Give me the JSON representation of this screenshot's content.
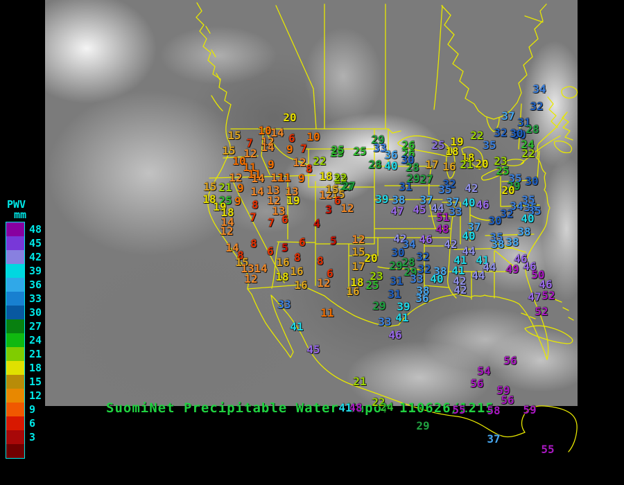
{
  "colorbar": {
    "title": "PWV",
    "units": "mm",
    "label_color": "#00e8e8",
    "entries": [
      {
        "value": 48,
        "color": "#8800a0"
      },
      {
        "value": 45,
        "color": "#7838d8"
      },
      {
        "value": 42,
        "color": "#8880e0"
      },
      {
        "value": 39,
        "color": "#00d8e0"
      },
      {
        "value": 36,
        "color": "#30a8e8"
      },
      {
        "value": 33,
        "color": "#1880d0"
      },
      {
        "value": 30,
        "color": "#0858a0"
      },
      {
        "value": 27,
        "color": "#088010"
      },
      {
        "value": 24,
        "color": "#10b810"
      },
      {
        "value": 21,
        "color": "#80cc00"
      },
      {
        "value": 18,
        "color": "#e0e000"
      },
      {
        "value": 15,
        "color": "#b88c08"
      },
      {
        "value": 12,
        "color": "#e88800"
      },
      {
        "value": 9,
        "color": "#f05800"
      },
      {
        "value": 6,
        "color": "#d81800"
      },
      {
        "value": 3,
        "color": "#a80808"
      }
    ],
    "below_min_color": "#700000"
  },
  "caption": {
    "text": "SuomiNet Precipitable Water Vapor",
    "datetime": "110626/1215",
    "color": "#20d040"
  },
  "map": {
    "border_color": "#e8e800",
    "background_color": "#000000"
  },
  "value_colors": {
    "3": "#d01000",
    "6": "#e83000",
    "9": "#f47000",
    "12": "#f08828",
    "15": "#dfa520",
    "18": "#e8e000",
    "21": "#9cd400",
    "24": "#30c030",
    "27": "#20a040",
    "30": "#2060c0",
    "33": "#3c82e0",
    "36": "#48a8f0",
    "39": "#20d8e8",
    "42": "#9090e8",
    "45": "#9868e8",
    "48": "#a818c0"
  },
  "chart_data": {
    "type": "scatter",
    "title": "SuomiNet Precipitable Water Vapor 110626/1215",
    "units": "mm",
    "legend_range": [
      3,
      48
    ]
  },
  "stations": [
    [
      20,
      418,
      170
    ],
    [
      15,
      338,
      196
    ],
    [
      10,
      382,
      189
    ],
    [
      14,
      400,
      192
    ],
    [
      6,
      421,
      200
    ],
    [
      10,
      452,
      198
    ],
    [
      7,
      360,
      207
    ],
    [
      12,
      386,
      205
    ],
    [
      14,
      386,
      213
    ],
    [
      9,
      418,
      216
    ],
    [
      7,
      438,
      215
    ],
    [
      15,
      330,
      218
    ],
    [
      12,
      361,
      222
    ],
    [
      10,
      345,
      233
    ],
    [
      25,
      486,
      221
    ],
    [
      22,
      461,
      233
    ],
    [
      11,
      360,
      242
    ],
    [
      9,
      391,
      238
    ],
    [
      12,
      432,
      235
    ],
    [
      8,
      446,
      244
    ],
    [
      12,
      340,
      257
    ],
    [
      11,
      367,
      252
    ],
    [
      14,
      372,
      258
    ],
    [
      12,
      400,
      257
    ],
    [
      11,
      410,
      257
    ],
    [
      9,
      435,
      258
    ],
    [
      18,
      470,
      255
    ],
    [
      22,
      492,
      260
    ],
    [
      27,
      500,
      270
    ],
    [
      15,
      303,
      270
    ],
    [
      21,
      325,
      271
    ],
    [
      9,
      347,
      272
    ],
    [
      14,
      371,
      277
    ],
    [
      13,
      394,
      275
    ],
    [
      13,
      421,
      277
    ],
    [
      18,
      302,
      288
    ],
    [
      25,
      325,
      290
    ],
    [
      9,
      343,
      291
    ],
    [
      12,
      395,
      290
    ],
    [
      19,
      423,
      290
    ],
    [
      12,
      470,
      282
    ],
    [
      15,
      488,
      281
    ],
    [
      6,
      487,
      290
    ],
    [
      8,
      368,
      296
    ],
    [
      19,
      317,
      299
    ],
    [
      18,
      328,
      307
    ],
    [
      14,
      328,
      321
    ],
    [
      12,
      327,
      334
    ],
    [
      7,
      365,
      314
    ],
    [
      13,
      402,
      305
    ],
    [
      7,
      391,
      322
    ],
    [
      6,
      411,
      317
    ],
    [
      4,
      457,
      323
    ],
    [
      8,
      366,
      352
    ],
    [
      14,
      335,
      358
    ],
    [
      8,
      347,
      369
    ],
    [
      6,
      390,
      363
    ],
    [
      5,
      411,
      358
    ],
    [
      6,
      436,
      350
    ],
    [
      8,
      429,
      372
    ],
    [
      8,
      462,
      377
    ],
    [
      15,
      349,
      379
    ],
    [
      13,
      357,
      388
    ],
    [
      14,
      376,
      388
    ],
    [
      12,
      362,
      403
    ],
    [
      16,
      408,
      379
    ],
    [
      16,
      428,
      392
    ],
    [
      18,
      407,
      400
    ],
    [
      16,
      434,
      412
    ],
    [
      5,
      481,
      348
    ],
    [
      12,
      517,
      346
    ],
    [
      15,
      517,
      364
    ],
    [
      20,
      535,
      373
    ],
    [
      17,
      517,
      385
    ],
    [
      6,
      476,
      395
    ],
    [
      12,
      467,
      409
    ],
    [
      18,
      515,
      408
    ],
    [
      16,
      509,
      421
    ],
    [
      23,
      543,
      399
    ],
    [
      25,
      537,
      412
    ],
    [
      42,
      577,
      345
    ],
    [
      34,
      590,
      353
    ],
    [
      46,
      614,
      346
    ],
    [
      30,
      574,
      365
    ],
    [
      29,
      571,
      384
    ],
    [
      28,
      589,
      379
    ],
    [
      32,
      610,
      371
    ],
    [
      29,
      592,
      393
    ],
    [
      32,
      612,
      389
    ],
    [
      33,
      601,
      403
    ],
    [
      38,
      635,
      392
    ],
    [
      40,
      630,
      403
    ],
    [
      31,
      572,
      406
    ],
    [
      31,
      569,
      425
    ],
    [
      38,
      610,
      420
    ],
    [
      36,
      609,
      431
    ],
    [
      29,
      547,
      442
    ],
    [
      39,
      582,
      443
    ],
    [
      41,
      580,
      459
    ],
    [
      33,
      555,
      465
    ],
    [
      46,
      570,
      484
    ],
    [
      11,
      472,
      452
    ],
    [
      45,
      452,
      505
    ],
    [
      33,
      410,
      440
    ],
    [
      41,
      428,
      472
    ],
    [
      29,
      545,
      202
    ],
    [
      33,
      548,
      214
    ],
    [
      25,
      487,
      217
    ],
    [
      25,
      519,
      219
    ],
    [
      26,
      589,
      210
    ],
    [
      26,
      589,
      222
    ],
    [
      36,
      564,
      224
    ],
    [
      30,
      588,
      231
    ],
    [
      28,
      541,
      238
    ],
    [
      40,
      564,
      240
    ],
    [
      28,
      595,
      242
    ],
    [
      29,
      596,
      258
    ],
    [
      27,
      615,
      259
    ],
    [
      22,
      491,
      257
    ],
    [
      27,
      503,
      269
    ],
    [
      15,
      479,
      274
    ],
    [
      3,
      474,
      303
    ],
    [
      12,
      501,
      301
    ],
    [
      31,
      585,
      270
    ],
    [
      39,
      551,
      288
    ],
    [
      38,
      575,
      289
    ],
    [
      37,
      615,
      289
    ],
    [
      47,
      573,
      305
    ],
    [
      45,
      605,
      303
    ],
    [
      44,
      631,
      301
    ],
    [
      51,
      639,
      314
    ],
    [
      33,
      657,
      306
    ],
    [
      25,
      632,
      210,
      "#8a70e0"
    ],
    [
      19,
      659,
      205
    ],
    [
      22,
      688,
      196
    ],
    [
      18,
      652,
      219
    ],
    [
      17,
      623,
      238
    ],
    [
      16,
      648,
      241
    ],
    [
      18,
      675,
      228
    ],
    [
      21,
      673,
      238
    ],
    [
      20,
      695,
      237
    ],
    [
      23,
      722,
      233
    ],
    [
      25,
      725,
      247
    ],
    [
      37,
      733,
      168
    ],
    [
      34,
      778,
      129
    ],
    [
      32,
      774,
      154
    ],
    [
      31,
      756,
      177
    ],
    [
      28,
      768,
      187
    ],
    [
      32,
      722,
      192
    ],
    [
      30,
      749,
      195
    ],
    [
      35,
      706,
      210
    ],
    [
      30,
      745,
      193
    ],
    [
      24,
      761,
      209
    ],
    [
      22,
      762,
      222
    ],
    [
      35,
      743,
      258
    ],
    [
      30,
      767,
      262
    ],
    [
      29,
      741,
      269
    ],
    [
      20,
      733,
      275
    ],
    [
      35,
      762,
      289
    ],
    [
      34,
      745,
      298
    ],
    [
      35,
      765,
      300
    ],
    [
      32,
      648,
      266
    ],
    [
      35,
      642,
      274
    ],
    [
      42,
      680,
      272
    ],
    [
      37,
      653,
      292
    ],
    [
      40,
      676,
      293
    ],
    [
      46,
      696,
      296
    ],
    [
      48,
      638,
      331
    ],
    [
      32,
      731,
      309
    ],
    [
      35,
      771,
      305
    ],
    [
      40,
      761,
      316
    ],
    [
      30,
      714,
      319
    ],
    [
      37,
      684,
      328
    ],
    [
      38,
      756,
      335
    ],
    [
      40,
      676,
      341
    ],
    [
      35,
      716,
      343
    ],
    [
      38,
      718,
      353
    ],
    [
      38,
      739,
      350
    ],
    [
      42,
      650,
      353
    ],
    [
      44,
      676,
      363
    ],
    [
      41,
      664,
      376
    ],
    [
      41,
      696,
      376
    ],
    [
      41,
      661,
      391
    ],
    [
      44,
      706,
      386
    ],
    [
      44,
      690,
      398
    ],
    [
      42,
      663,
      406
    ],
    [
      49,
      739,
      389
    ],
    [
      46,
      751,
      374
    ],
    [
      46,
      764,
      385
    ],
    [
      50,
      776,
      397
    ],
    [
      46,
      787,
      411
    ],
    [
      42,
      664,
      419
    ],
    [
      47,
      771,
      429
    ],
    [
      52,
      791,
      427
    ],
    [
      52,
      781,
      450
    ],
    [
      21,
      519,
      551
    ],
    [
      56,
      736,
      521
    ],
    [
      54,
      698,
      536
    ],
    [
      56,
      688,
      554
    ],
    [
      59,
      726,
      564
    ],
    [
      56,
      732,
      578
    ],
    [
      55,
      662,
      592
    ],
    [
      58,
      712,
      593
    ],
    [
      59,
      764,
      592
    ],
    [
      29,
      610,
      615
    ],
    [
      37,
      712,
      634
    ],
    [
      55,
      790,
      649
    ],
    [
      48,
      513,
      589
    ],
    [
      41,
      498,
      589
    ],
    [
      22,
      546,
      581
    ],
    [
      24,
      558,
      588
    ]
  ]
}
